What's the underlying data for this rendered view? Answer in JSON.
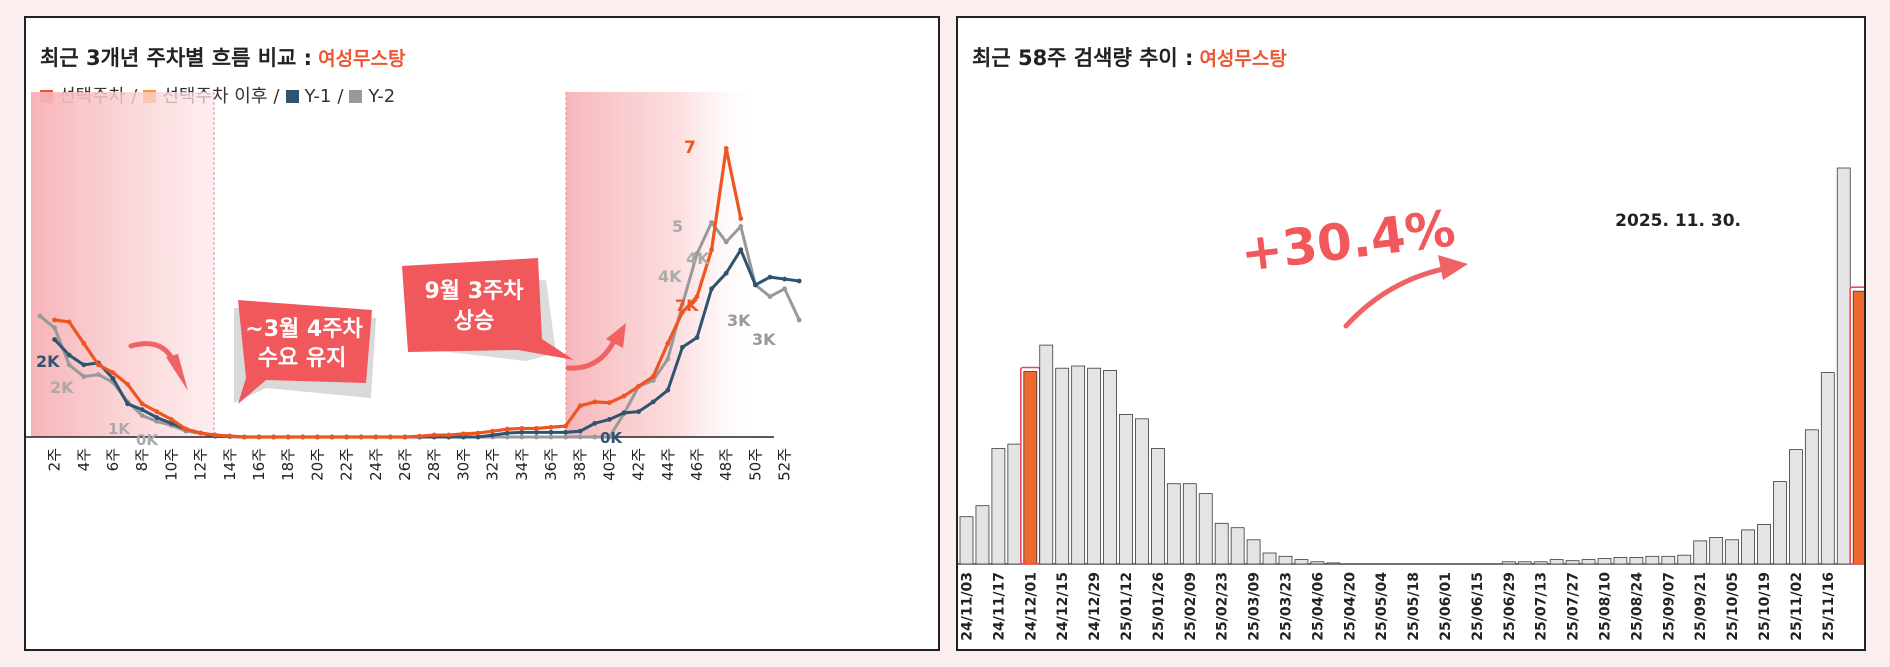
{
  "left_panel": {
    "title": "최근 3개년 주차별 흐름 비교 :",
    "keyword": "여성무스탕",
    "legend": [
      {
        "label": "선택주차",
        "color": "#ee5522"
      },
      {
        "label": "선택주차 이후",
        "color": "#f59a33"
      },
      {
        "label": "Y-1",
        "color": "#2e5470"
      },
      {
        "label": "Y-2",
        "color": "#999999"
      }
    ],
    "annotations": {
      "callout_left": [
        "~3월 4주차",
        "수요 유지"
      ],
      "callout_right": [
        "9월 3주차",
        "상승"
      ]
    },
    "value_labels": [
      "7",
      "5",
      "4K",
      "4K",
      "7K",
      "3K",
      "3K",
      "2K",
      "2K",
      "1K",
      "0K",
      "0K"
    ]
  },
  "right_panel": {
    "title": "최근 58주 검색량 추이 :",
    "keyword": "여성무스탕",
    "growth_label": "+30.4%",
    "date_label": "2025. 11. 30."
  },
  "chart_data": [
    {
      "type": "line",
      "title": "최근 3개년 주차별 흐름 비교 : 여성무스탕",
      "x": [
        1,
        2,
        3,
        4,
        5,
        6,
        7,
        8,
        9,
        10,
        11,
        12,
        13,
        14,
        15,
        16,
        17,
        18,
        19,
        20,
        21,
        22,
        23,
        24,
        25,
        26,
        27,
        28,
        29,
        30,
        31,
        32,
        33,
        34,
        35,
        36,
        37,
        38,
        39,
        40,
        41,
        42,
        43,
        44,
        45,
        46,
        47,
        48,
        49,
        50,
        51,
        52,
        53
      ],
      "xticks": [
        "2주",
        "4주",
        "6주",
        "8주",
        "10주",
        "12주",
        "14주",
        "16주",
        "18주",
        "20주",
        "22주",
        "24주",
        "26주",
        "28주",
        "30주",
        "32주",
        "34주",
        "36주",
        "38주",
        "40주",
        "42주",
        "44주",
        "46주",
        "48주",
        "50주",
        "52주"
      ],
      "ylim": [
        0,
        8
      ],
      "series": [
        {
          "name": "선택주차",
          "color": "#ee5522",
          "values": [
            null,
            3.0,
            2.95,
            2.4,
            1.85,
            1.65,
            1.35,
            0.85,
            0.65,
            0.45,
            0.2,
            0.1,
            0.05,
            0.02,
            0,
            0,
            0,
            0,
            0,
            0,
            0,
            0,
            0,
            0,
            0,
            0,
            0.02,
            0.05,
            0.05,
            0.08,
            0.1,
            0.15,
            0.2,
            0.22,
            0.22,
            0.25,
            0.28,
            0.8,
            0.9,
            0.88,
            1.05,
            1.3,
            1.55,
            2.4,
            3.2,
            3.6,
            4.8,
            7.4,
            5.6,
            null,
            null,
            null,
            null
          ]
        },
        {
          "name": "Y-1",
          "color": "#2e5470",
          "values": [
            null,
            2.5,
            2.1,
            1.85,
            1.9,
            1.5,
            0.85,
            0.7,
            0.5,
            0.35,
            0.2,
            0.1,
            0.02,
            0.01,
            0,
            0,
            0,
            0,
            0,
            0,
            0,
            0,
            0,
            0,
            0,
            0,
            0,
            0,
            0,
            0,
            0,
            0.05,
            0.1,
            0.12,
            0.12,
            0.12,
            0.12,
            0.15,
            0.35,
            0.45,
            0.62,
            0.65,
            0.9,
            1.2,
            2.3,
            2.55,
            3.8,
            4.2,
            4.8,
            3.9,
            4.1,
            4.05,
            4.0
          ]
        },
        {
          "name": "Y-2",
          "color": "#999999",
          "values": [
            3.1,
            2.8,
            1.85,
            1.55,
            1.6,
            1.4,
            0.9,
            0.55,
            0.4,
            0.3,
            0.15,
            0.1,
            0.05,
            0.03,
            0,
            0,
            0,
            0,
            0,
            0,
            0,
            0,
            0,
            0,
            0,
            0,
            0,
            0,
            0,
            0,
            0,
            0,
            0,
            0,
            0,
            0,
            0,
            0,
            0,
            0,
            0.6,
            1.3,
            1.45,
            2.0,
            3.4,
            4.7,
            5.5,
            5.0,
            5.4,
            3.9,
            3.6,
            3.8,
            3.0
          ]
        }
      ]
    },
    {
      "type": "bar",
      "title": "최근 58주 검색량 추이 : 여성무스탕",
      "categories": [
        "24/11/03",
        "24/11/10",
        "24/11/17",
        "24/11/24",
        "24/12/01",
        "24/12/08",
        "24/12/15",
        "24/12/22",
        "24/12/29",
        "25/01/05",
        "25/01/12",
        "25/01/19",
        "25/01/26",
        "25/02/02",
        "25/02/09",
        "25/02/16",
        "25/02/23",
        "25/03/02",
        "25/03/09",
        "25/03/16",
        "25/03/23",
        "25/03/30",
        "25/04/06",
        "25/04/13",
        "25/04/20",
        "25/04/27",
        "25/05/04",
        "25/05/11",
        "25/05/18",
        "25/05/25",
        "25/06/01",
        "25/06/08",
        "25/06/15",
        "25/06/22",
        "25/06/29",
        "25/07/06",
        "25/07/13",
        "25/07/20",
        "25/07/27",
        "25/08/03",
        "25/08/10",
        "25/08/17",
        "25/08/24",
        "25/08/31",
        "25/09/07",
        "25/09/14",
        "25/09/21",
        "25/09/28",
        "25/10/05",
        "25/10/12",
        "25/10/19",
        "25/10/26",
        "25/11/02",
        "25/11/09",
        "25/11/16",
        "25/11/23",
        "25/11/30"
      ],
      "xticks": [
        "24/11/03",
        "24/11/17",
        "24/12/01",
        "24/12/15",
        "24/12/29",
        "25/01/12",
        "25/01/26",
        "25/02/09",
        "25/02/23",
        "25/03/09",
        "25/03/23",
        "25/04/06",
        "25/04/20",
        "25/05/04",
        "25/05/18",
        "25/06/01",
        "25/06/15",
        "25/06/29",
        "25/07/13",
        "25/07/27",
        "25/08/10",
        "25/08/24",
        "25/09/07",
        "25/09/21",
        "25/10/05",
        "25/10/19",
        "25/11/02",
        "25/11/16"
      ],
      "values": [
        43,
        53,
        105,
        109,
        175,
        199,
        178,
        180,
        178,
        176,
        136,
        132,
        105,
        73,
        73,
        64,
        37,
        33,
        22,
        10,
        7,
        4,
        2,
        1,
        0,
        0,
        0,
        0,
        0,
        0,
        0,
        0,
        0,
        0,
        2,
        2,
        2,
        4,
        3,
        4,
        5,
        6,
        6,
        7,
        7,
        8,
        21,
        24,
        22,
        31,
        36,
        75,
        104,
        122,
        174,
        360,
        248
      ],
      "highlighted": [
        "24/12/01",
        "25/11/30"
      ],
      "colors": {
        "normal": "#e4e4e4",
        "highlight": "#ee6a2c"
      }
    }
  ]
}
